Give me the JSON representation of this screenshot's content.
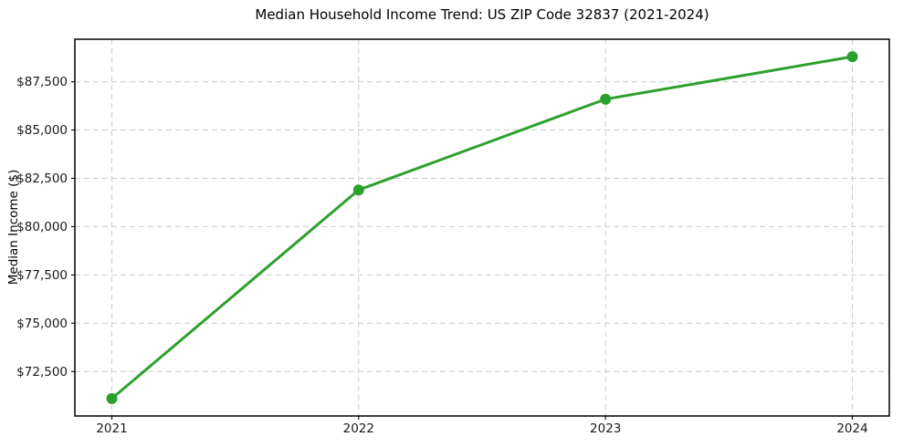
{
  "chart_data": {
    "type": "line",
    "title": "Median Household Income Trend: US ZIP Code 32837 (2021-2024)",
    "xlabel": "",
    "ylabel": "Median Income ($)",
    "x": [
      2021,
      2022,
      2023,
      2024
    ],
    "x_tick_labels": [
      "2021",
      "2022",
      "2023",
      "2024"
    ],
    "series_name": "Median Household Income",
    "values": [
      71100,
      81900,
      86600,
      88800
    ],
    "y_ticks": [
      72500,
      75000,
      77500,
      80000,
      82500,
      85000,
      87500
    ],
    "y_tick_labels": [
      "$72,500",
      "$75,000",
      "$77,500",
      "$80,000",
      "$82,500",
      "$85,000",
      "$87,500"
    ],
    "ylim": [
      70200,
      89700
    ],
    "xlim": [
      2020.85,
      2024.15
    ],
    "grid": true,
    "grid_style": "dashed",
    "legend_position": "none",
    "line_color": "#2ca02c",
    "marker": "circle",
    "grid_color": "#cccccc",
    "background_color": "#ffffff"
  }
}
